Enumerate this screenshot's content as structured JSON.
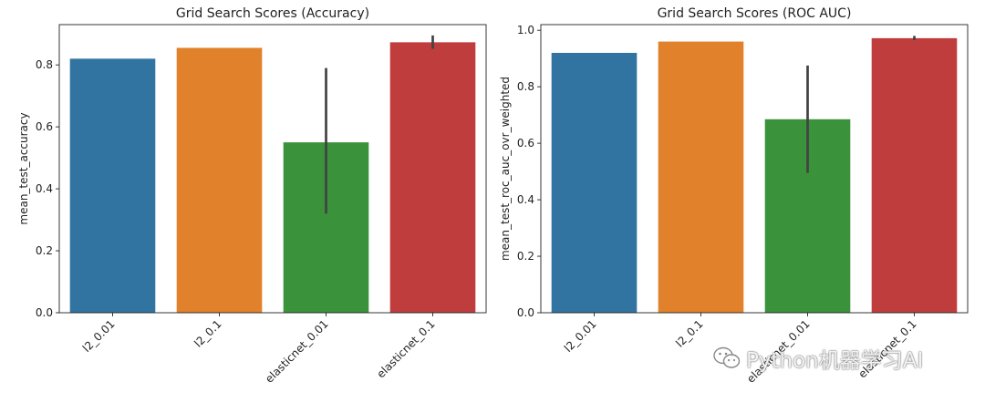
{
  "chart_data": [
    {
      "type": "bar",
      "title": "Grid Search Scores (Accuracy)",
      "xlabel": "",
      "ylabel": "mean_test_accuracy",
      "categories": [
        "l2_0.01",
        "l2_0.1",
        "elasticnet_0.01",
        "elasticnet_0.1"
      ],
      "values": [
        0.82,
        0.855,
        0.55,
        0.873
      ],
      "error_low": [
        0.82,
        0.855,
        0.32,
        0.852
      ],
      "error_high": [
        0.82,
        0.855,
        0.79,
        0.895
      ],
      "ylim": [
        0,
        0.93
      ],
      "yticks": [
        0.0,
        0.2,
        0.4,
        0.6,
        0.8
      ],
      "ytick_labels": [
        "0.0",
        "0.2",
        "0.4",
        "0.6",
        "0.8"
      ],
      "colors": [
        "#3274a1",
        "#e1812c",
        "#3a923a",
        "#c03d3e"
      ]
    },
    {
      "type": "bar",
      "title": "Grid Search Scores (ROC AUC)",
      "xlabel": "",
      "ylabel": "mean_test_roc_auc_ovr_weighted",
      "categories": [
        "l2_0.01",
        "l2_0.1",
        "elasticnet_0.01",
        "elasticnet_0.1"
      ],
      "values": [
        0.92,
        0.96,
        0.685,
        0.972
      ],
      "error_low": [
        0.92,
        0.96,
        0.495,
        0.965
      ],
      "error_high": [
        0.92,
        0.96,
        0.875,
        0.98
      ],
      "ylim": [
        0,
        1.02
      ],
      "yticks": [
        0.0,
        0.2,
        0.4,
        0.6,
        0.8,
        1.0
      ],
      "ytick_labels": [
        "0.0",
        "0.2",
        "0.4",
        "0.6",
        "0.8",
        "1.0"
      ],
      "colors": [
        "#3274a1",
        "#e1812c",
        "#3a923a",
        "#c03d3e"
      ]
    }
  ],
  "watermark": {
    "text": "Python机器学习AI",
    "icon": "wechat-icon"
  }
}
